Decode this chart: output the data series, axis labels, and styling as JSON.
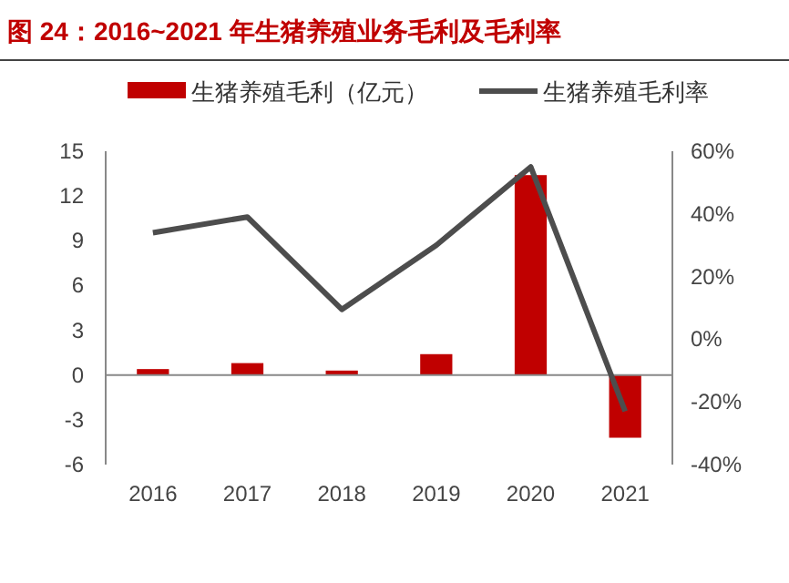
{
  "chart_data": {
    "type": "bar",
    "title": "图 24：2016~2021 年生猪养殖业务毛利及毛利率",
    "categories": [
      "2016",
      "2017",
      "2018",
      "2019",
      "2020",
      "2021"
    ],
    "series": [
      {
        "name": "生猪养殖毛利（亿元）",
        "color": "#c00000",
        "values": [
          0.4,
          0.8,
          0.3,
          1.4,
          13.4,
          -4.2
        ]
      },
      {
        "name": "生猪养殖毛利率",
        "type": "line",
        "axis": "y2",
        "color": "#4d4d4d",
        "values": [
          34,
          39,
          9.5,
          30,
          55,
          -23
        ]
      }
    ],
    "ylim": [
      -6,
      15
    ],
    "yticks": [
      -6,
      -3,
      0,
      3,
      6,
      9,
      12,
      15
    ],
    "y2lim": [
      -40,
      60
    ],
    "y2ticks": [
      {
        "value": -40,
        "label": "-40%"
      },
      {
        "value": -20,
        "label": "-20%"
      },
      {
        "value": 0,
        "label": "0%"
      },
      {
        "value": 20,
        "label": "20%"
      },
      {
        "value": 40,
        "label": "40%"
      },
      {
        "value": 60,
        "label": "60%"
      }
    ],
    "legend": "top"
  }
}
